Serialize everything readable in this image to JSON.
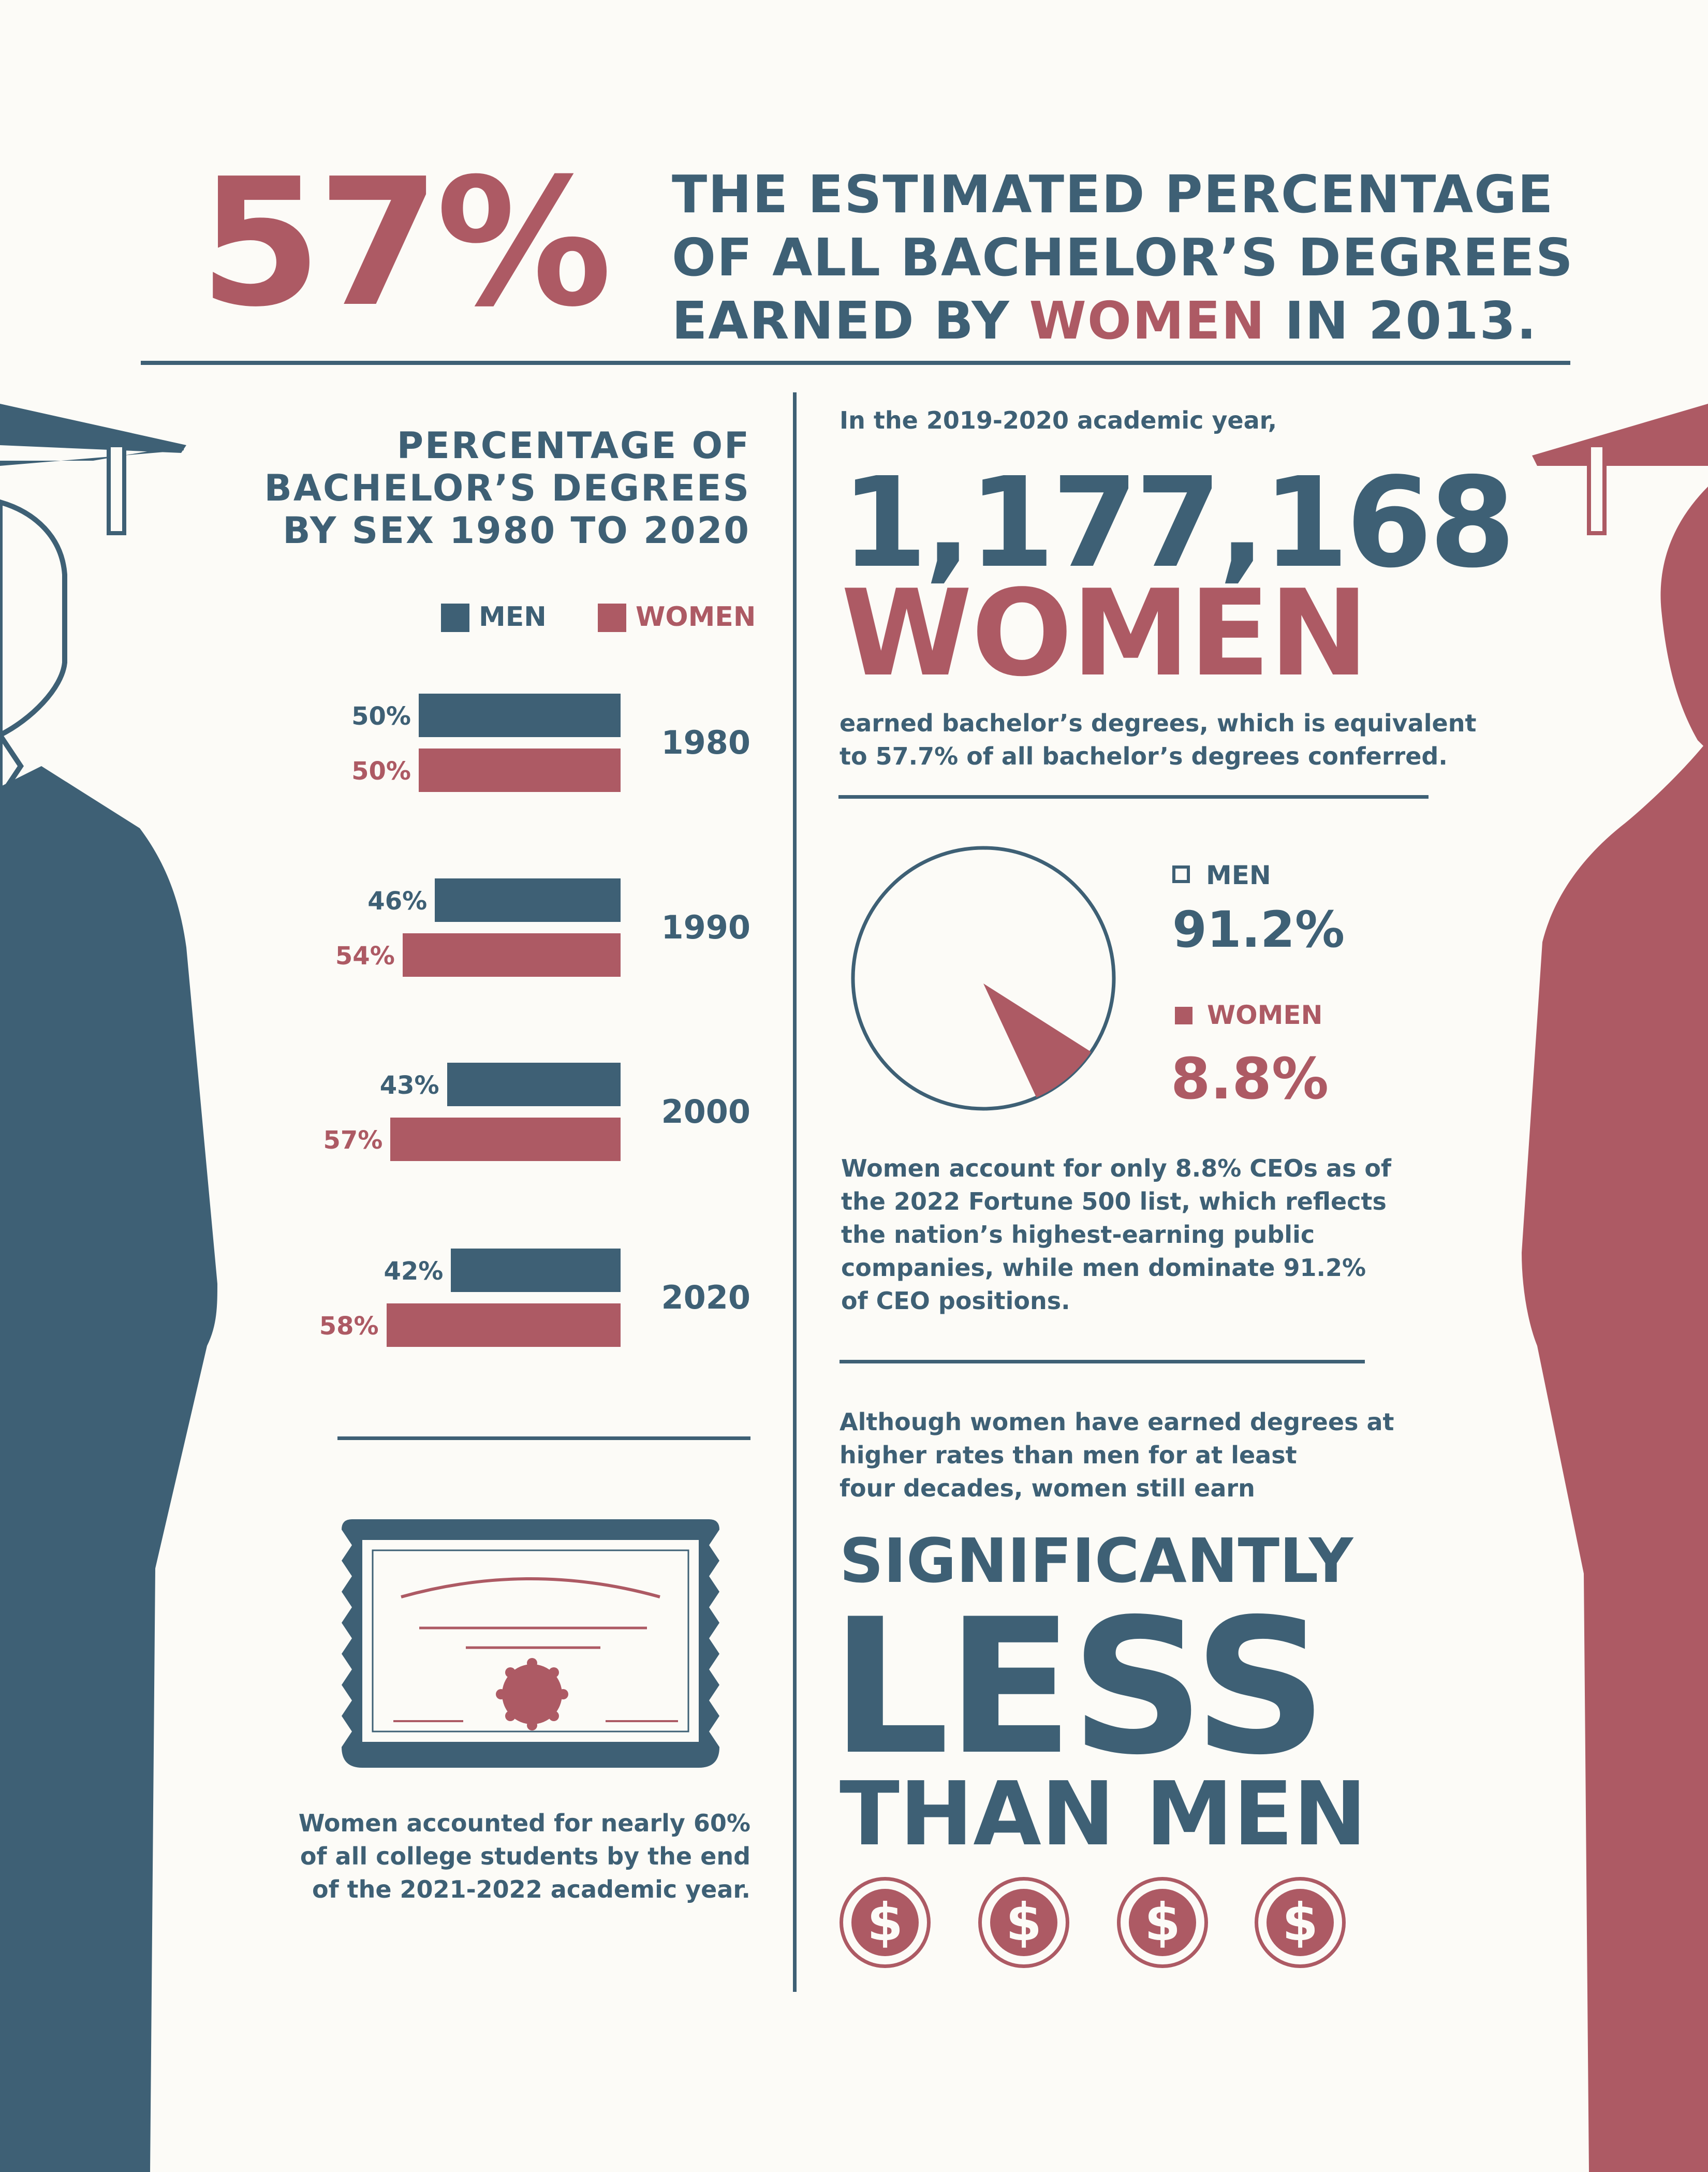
{
  "colors": {
    "men": "#3e6075",
    "women": "#ad5a64",
    "background": "#fcfbf7"
  },
  "header": {
    "big_percent": "57%",
    "line1": "THE ESTIMATED PERCENTAGE",
    "line2": "OF ALL BACHELOR’S DEGREES",
    "line3_pre": "EARNED BY ",
    "line3_highlight": "WOMEN",
    "line3_post": " IN 2013."
  },
  "chart_data": [
    {
      "type": "bar",
      "title": "PERCENTAGE OF BACHELOR’S DEGREES BY SEX 1980 TO 2020",
      "categories": [
        "1980",
        "1990",
        "2000",
        "2020"
      ],
      "series": [
        {
          "name": "MEN",
          "values": [
            50,
            46,
            43,
            42
          ]
        },
        {
          "name": "WOMEN",
          "values": [
            50,
            54,
            57,
            58
          ]
        }
      ],
      "value_labels": {
        "men": [
          "50%",
          "46%",
          "43%",
          "42%"
        ],
        "women": [
          "50%",
          "54%",
          "57%",
          "58%"
        ]
      },
      "legend": [
        "MEN",
        "WOMEN"
      ]
    },
    {
      "type": "pie",
      "labels": [
        "MEN",
        "WOMEN"
      ],
      "values": [
        91.2,
        8.8
      ],
      "value_labels": [
        "91.2%",
        "8.8%"
      ]
    }
  ],
  "chart_title": {
    "line1": "PERCENTAGE OF",
    "line2": "BACHELOR’S DEGREES",
    "line3": "BY SEX 1980 TO 2020"
  },
  "legend": {
    "men": "MEN",
    "women": "WOMEN"
  },
  "stats": {
    "intro": "In the 2019-2020 academic year,",
    "big_number": "1,177,168",
    "big_word": "WOMEN",
    "desc_line1": "earned bachelor’s degrees, which is equivalent",
    "desc_line2": "to 57.7% of all bachelor’s degrees conferred."
  },
  "pie": {
    "men_label": "MEN",
    "men_value": "91.2%",
    "women_label": "WOMEN",
    "women_value": "8.8%"
  },
  "ceo_text": [
    "Women account for only 8.8% CEOs as of",
    "the 2022 Fortune 500 list, which reflects",
    "the nation’s highest-earning public",
    "companies, while men dominate 91.2%",
    "of CEO positions."
  ],
  "earnings": {
    "text": [
      "Although women have earned degrees at",
      "higher rates than men for at least",
      "four decades, women still earn"
    ],
    "word1": "SIGNIFICANTLY",
    "word2": "LESS",
    "word3": "THAN MEN",
    "dollar": "$"
  },
  "students_text": [
    "Women accounted for nearly 60%",
    "of all college students by the end",
    "of the 2021-2022 academic year."
  ]
}
